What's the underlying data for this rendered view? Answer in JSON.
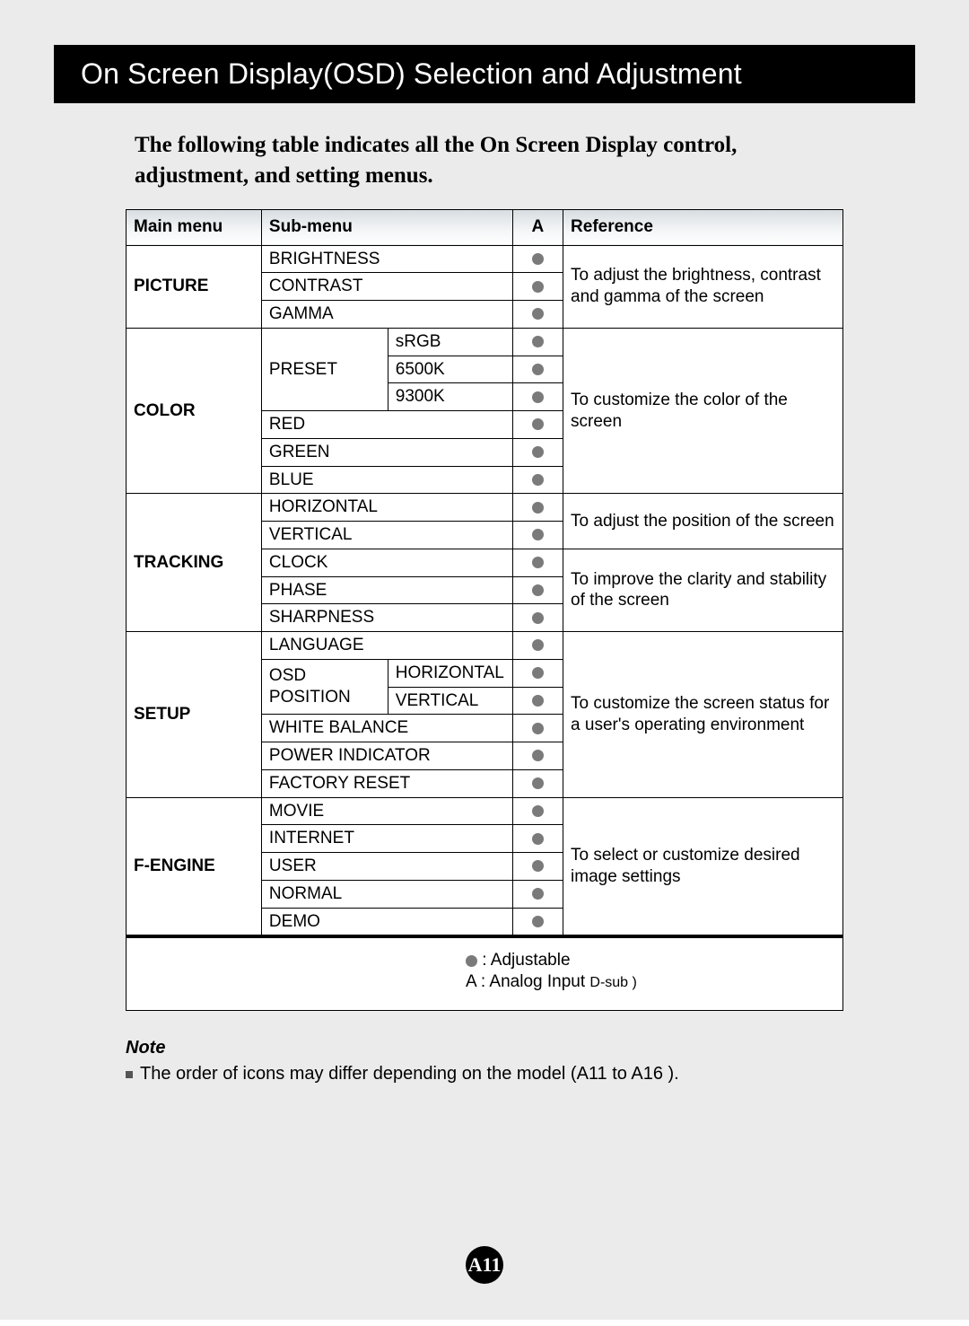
{
  "title": "On Screen Display(OSD) Selection and Adjustment",
  "intro": "The following table indicates all the On Screen Display control, adjustment, and setting menus.",
  "columns": {
    "main": "Main menu",
    "sub": "Sub-menu",
    "a": "A",
    "ref": "Reference"
  },
  "picture": {
    "main": "PICTURE",
    "brightness": "BRIGHTNESS",
    "contrast": "CONTRAST",
    "gamma": "GAMMA",
    "ref": "To adjust the brightness, contrast and gamma of the screen"
  },
  "color": {
    "main": "COLOR",
    "preset": "PRESET",
    "srgb": "sRGB",
    "k6500": "6500K",
    "k9300": "9300K",
    "red": "RED",
    "green": "GREEN",
    "blue": "BLUE",
    "ref": "To customize the color of the screen"
  },
  "tracking": {
    "main": "TRACKING",
    "horizontal": "HORIZONTAL",
    "vertical": "VERTICAL",
    "clock": "CLOCK",
    "phase": "PHASE",
    "sharpness": "SHARPNESS",
    "ref1": "To adjust the position of the screen",
    "ref2": "To improve the clarity and stability of the screen"
  },
  "setup": {
    "main": "SETUP",
    "language": "LANGUAGE",
    "osdpos": "OSD POSITION",
    "osdh": "HORIZONTAL",
    "osdv": "VERTICAL",
    "white": "WHITE BALANCE",
    "power": "POWER INDICATOR",
    "factory": "FACTORY RESET",
    "ref": "To customize the screen status for a user's operating environment"
  },
  "fengine": {
    "main": "F-ENGINE",
    "movie": "MOVIE",
    "internet": "INTERNET",
    "user": "USER",
    "normal": "NORMAL",
    "demo": "DEMO",
    "ref": "To select or customize desired image settings"
  },
  "legend": {
    "adjustable": ": Adjustable",
    "analog_prefix": "A : Analog Input ",
    "analog_sub": "D-sub )"
  },
  "note": {
    "title": "Note",
    "text": "The order of icons may differ depending on the model (A11 to A16 )."
  },
  "page_number": "A11",
  "colors": {
    "page_bg": "#ebebeb",
    "header_bg": "#000000",
    "header_text": "#ffffff",
    "border": "#000000",
    "dot": "#7a7a7a",
    "th_grad_top": "#d8dde1",
    "th_grad_bottom": "#ffffff"
  }
}
